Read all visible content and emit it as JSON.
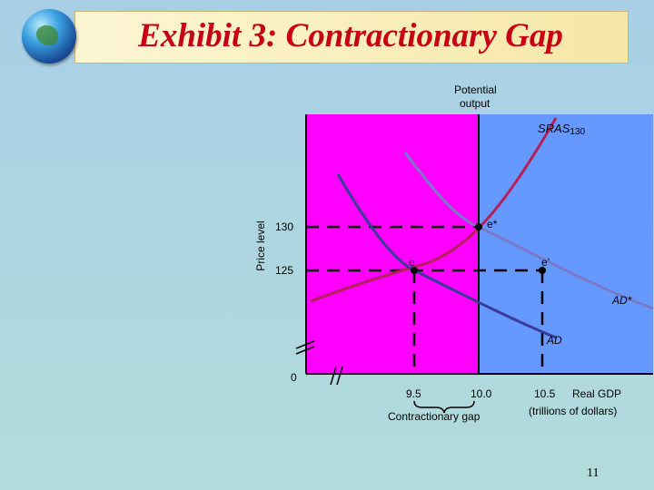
{
  "slide": {
    "title": "Exhibit 3: Contractionary Gap",
    "page_number": "11",
    "colors": {
      "title": "#c80016",
      "gap_region": "#ff00ff",
      "right_region": "#6699ff"
    }
  },
  "diagram": {
    "potential_output_label": [
      "Potential",
      "output"
    ],
    "y_axis_label": "Price level",
    "x_axis_label": [
      "Real GDP",
      "(trillions of dollars)"
    ],
    "origin_label": "0",
    "gap_label": "Contractionary gap",
    "curves": {
      "sras": "SRAS",
      "sras_sub": "130",
      "ad_star": "AD*",
      "ad": "AD"
    },
    "points": {
      "e_star": "e*",
      "e": "e",
      "e_prime": "e’"
    },
    "y_ticks": [
      "130",
      "125"
    ],
    "x_ticks": [
      "9.5",
      "10.0",
      "10.5"
    ]
  }
}
